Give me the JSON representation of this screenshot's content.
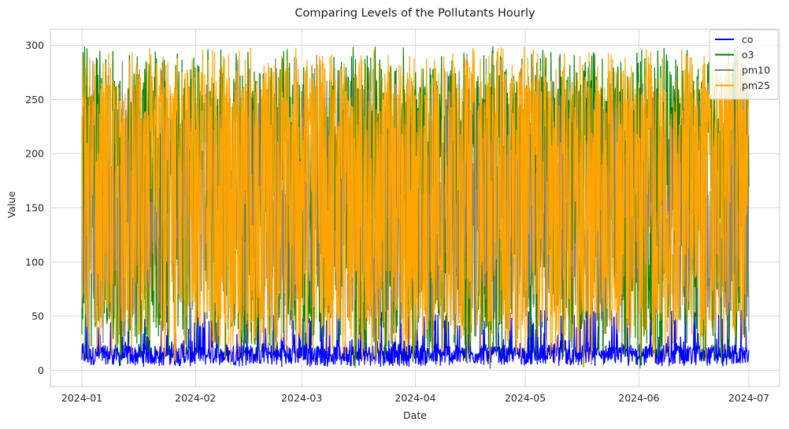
{
  "chart_data": {
    "type": "line",
    "title": "Comparing Levels of the Pollutants Hourly",
    "xlabel": "Date",
    "ylabel": "Value",
    "x_range": [
      "2024-01-01",
      "2024-07-01"
    ],
    "x_ticks": [
      "2024-01",
      "2024-02",
      "2024-03",
      "2024-04",
      "2024-05",
      "2024-06",
      "2024-07"
    ],
    "ylim": [
      -15,
      315
    ],
    "y_ticks": [
      0,
      50,
      100,
      150,
      200,
      250,
      300
    ],
    "grid": true,
    "legend_position": "top-right",
    "series": [
      {
        "name": "co",
        "color": "#0000ff",
        "sampled_values": [
          8,
          20,
          5,
          40,
          12,
          4,
          18,
          30,
          6,
          10,
          25,
          7,
          15,
          3,
          22,
          9,
          11,
          5,
          28,
          14,
          6,
          19,
          8,
          12,
          4,
          16,
          24,
          10,
          7,
          13,
          5,
          21,
          9,
          15,
          6,
          11
        ],
        "range": [
          0,
          70
        ]
      },
      {
        "name": "o3",
        "color": "#008000",
        "sampled_values": [
          150,
          280,
          20,
          295,
          60,
          230,
          10,
          300,
          120,
          40,
          270,
          90,
          15,
          290,
          200,
          30,
          260,
          70,
          5,
          285,
          140,
          25,
          298,
          180,
          50,
          240,
          12,
          292,
          100,
          35,
          275,
          160,
          8,
          288,
          210,
          45
        ],
        "range": [
          0,
          300
        ]
      },
      {
        "name": "pm10",
        "color": "#808080",
        "sampled_values": [
          100,
          280,
          60,
          220,
          150,
          40,
          290,
          120,
          80,
          260,
          30,
          200,
          170,
          50,
          295,
          110,
          90,
          240,
          20,
          180,
          140,
          70,
          285,
          130,
          45,
          250,
          160,
          35,
          275,
          105,
          85,
          230,
          55,
          190,
          125,
          65
        ],
        "range": [
          0,
          300
        ]
      },
      {
        "name": "pm25",
        "color": "#ffa500",
        "sampled_values": [
          180,
          290,
          20,
          260,
          70,
          300,
          10,
          240,
          120,
          280,
          40,
          295,
          150,
          30,
          270,
          90,
          298,
          60,
          220,
          15,
          285,
          110,
          250,
          50,
          292,
          130,
          35,
          275,
          80,
          296,
          160,
          25,
          265,
          100,
          288,
          140
        ],
        "range": [
          0,
          300
        ]
      }
    ]
  }
}
